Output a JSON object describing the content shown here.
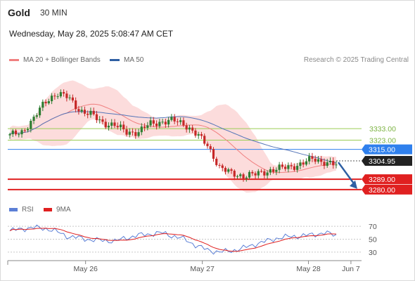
{
  "header": {
    "instrument": "Gold",
    "interval": "30 MIN",
    "datetime": "Wednesday, May 28, 2025 5:08:47 AM CET"
  },
  "legend": {
    "items": [
      {
        "label": "MA 20 + Bollinger Bands",
        "color": "#f08080"
      },
      {
        "label": "MA 50",
        "color": "#2e5fa3"
      }
    ],
    "copyright": "Research © 2025 Trading Central"
  },
  "rsi_legend": {
    "items": [
      {
        "label": "RSI",
        "color": "#5b7fd6"
      },
      {
        "label": "9MA",
        "color": "#e02020"
      }
    ]
  },
  "colors": {
    "up": "#2e7d32",
    "down": "#c62828",
    "band": "#fbd0d0",
    "ma20": "#f08080",
    "ma50": "#5575b8",
    "support": "#e02020",
    "resistance_green": "#9acd55",
    "pivot": "#2f80ed",
    "arrow": "#2e5fa3"
  },
  "chart_data": {
    "type": "candlestick",
    "price_ylim": [
      3272,
      3385
    ],
    "levels": [
      {
        "value": 3333.0,
        "label": "3333.00",
        "kind": "resistance"
      },
      {
        "value": 3323.0,
        "label": "3323.00",
        "kind": "resistance"
      },
      {
        "value": 3315.0,
        "label": "3315.00",
        "kind": "pivot"
      },
      {
        "value": 3289.0,
        "label": "3289.00",
        "kind": "support"
      },
      {
        "value": 3280.0,
        "label": "3280.00",
        "kind": "support"
      }
    ],
    "last_price": {
      "value": 3304.95,
      "label": "3304.95"
    },
    "x_ticks": [
      "May 26",
      "May 27",
      "May 28",
      "Jun 7"
    ],
    "x_tick_positions": [
      0.22,
      0.55,
      0.85,
      0.97
    ],
    "price_anchors": [
      3327,
      3330,
      3341,
      3356,
      3364,
      3360,
      3349,
      3345,
      3338,
      3336,
      3330,
      3330,
      3337,
      3339,
      3340,
      3337,
      3328,
      3318,
      3299,
      3294,
      3292,
      3293,
      3296,
      3298,
      3300,
      3302,
      3307,
      3304,
      3301
    ],
    "rsi": {
      "levels": [
        70,
        50,
        30
      ],
      "anchors": [
        63,
        66,
        68,
        67,
        62,
        54,
        52,
        49,
        48,
        47,
        52,
        56,
        58,
        60,
        55,
        50,
        40,
        33,
        30,
        32,
        36,
        42,
        47,
        52,
        54,
        55,
        57,
        60,
        56
      ]
    },
    "forecast": {
      "from": 3304.95,
      "to": 3280.0
    }
  }
}
